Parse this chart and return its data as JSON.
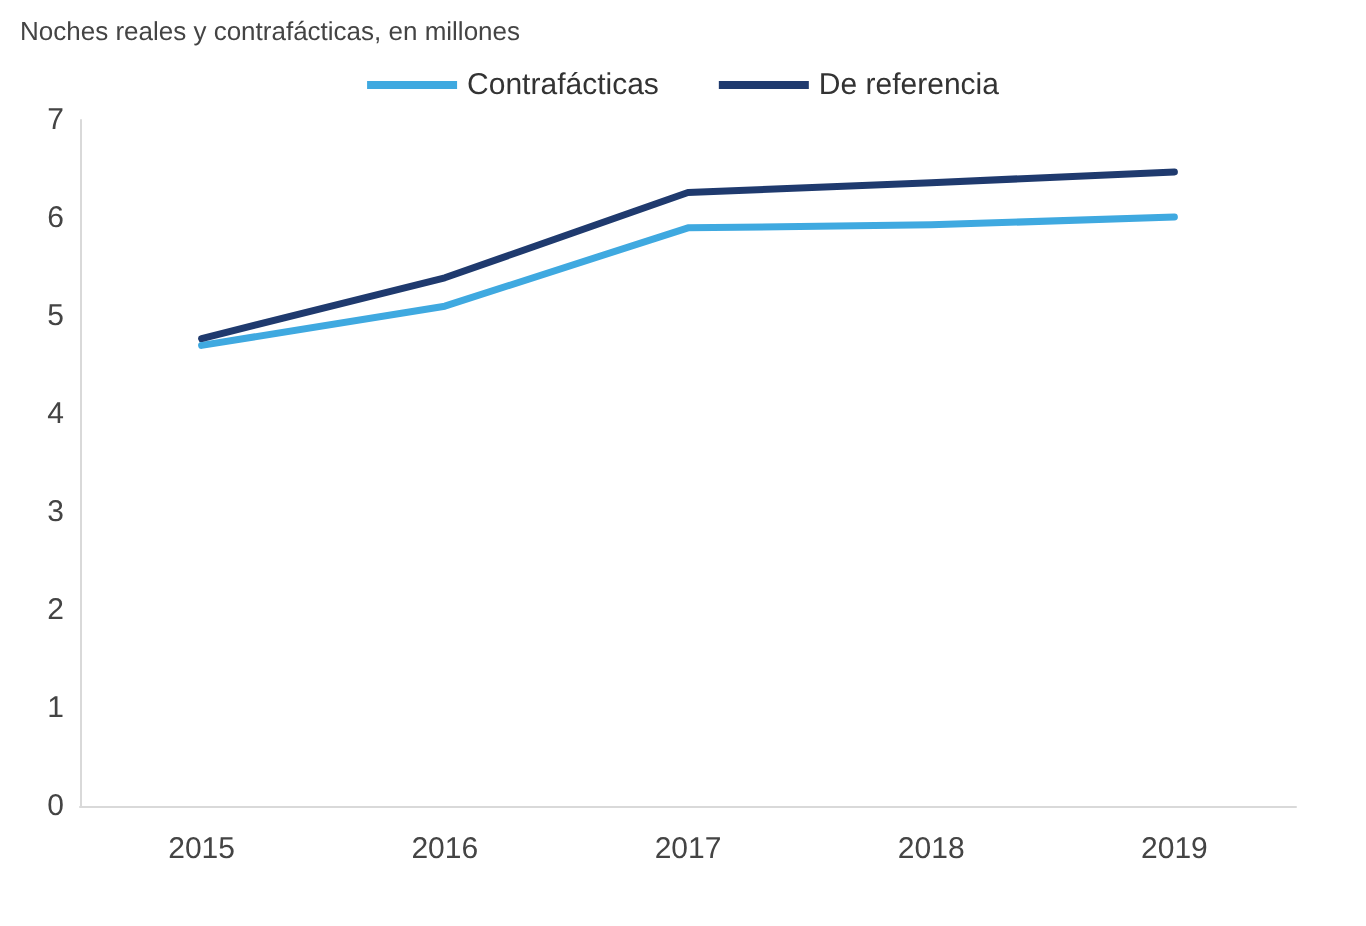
{
  "chart_data": {
    "type": "line",
    "title": "Noches reales y contrafácticas, en millones",
    "categories": [
      "2015",
      "2016",
      "2017",
      "2018",
      "2019"
    ],
    "series": [
      {
        "name": "Contrafácticas",
        "color": "#3fa9e0",
        "values": [
          4.7,
          5.1,
          5.9,
          5.93,
          6.01
        ]
      },
      {
        "name": "De referencia",
        "color": "#1f3a6e",
        "values": [
          4.77,
          5.39,
          6.26,
          6.36,
          6.47
        ]
      }
    ],
    "ylim": [
      0,
      7
    ],
    "yticks": [
      0,
      1,
      2,
      3,
      4,
      5,
      6,
      7
    ],
    "grid": false,
    "legend": "top",
    "marker": "none",
    "line_style": "solid"
  }
}
